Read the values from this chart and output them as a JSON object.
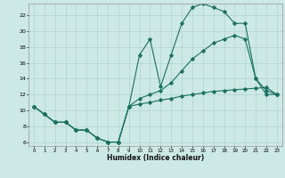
{
  "xlabel": "Humidex (Indice chaleur)",
  "background_color": "#cce9e5",
  "grid_color": "#aed4cf",
  "line_color": "#1a7060",
  "line1_x": [
    0,
    1,
    2,
    3,
    4,
    5,
    6,
    7,
    8,
    9,
    10,
    11,
    12,
    13,
    14,
    15,
    16,
    17,
    18,
    19,
    20,
    21,
    22,
    23
  ],
  "line1_y": [
    10.5,
    9.5,
    8.5,
    8.5,
    7.5,
    7.5,
    6.5,
    6.0,
    6.0,
    10.5,
    17.0,
    19.0,
    13.0,
    17.0,
    21.0,
    23.0,
    23.5,
    23.0,
    22.5,
    21.0,
    21.0,
    14.0,
    12.0,
    12.0
  ],
  "line2_x": [
    0,
    1,
    2,
    3,
    4,
    5,
    6,
    7,
    8,
    9,
    10,
    11,
    12,
    13,
    14,
    15,
    16,
    17,
    18,
    19,
    20,
    21,
    22,
    23
  ],
  "line2_y": [
    10.5,
    9.5,
    8.5,
    8.5,
    7.5,
    7.5,
    6.5,
    6.0,
    6.0,
    10.5,
    11.5,
    12.0,
    12.5,
    13.5,
    15.0,
    16.5,
    17.5,
    18.5,
    19.0,
    19.5,
    19.0,
    14.0,
    12.5,
    12.0
  ],
  "line3_x": [
    0,
    1,
    2,
    3,
    4,
    5,
    6,
    7,
    8,
    9,
    10,
    11,
    12,
    13,
    14,
    15,
    16,
    17,
    18,
    19,
    20,
    21,
    22,
    23
  ],
  "line3_y": [
    10.5,
    9.5,
    8.5,
    8.5,
    7.5,
    7.5,
    6.5,
    6.0,
    6.0,
    10.5,
    10.8,
    11.0,
    11.3,
    11.5,
    11.8,
    12.0,
    12.2,
    12.4,
    12.5,
    12.6,
    12.7,
    12.8,
    12.9,
    12.0
  ],
  "xlim": [
    -0.5,
    23.5
  ],
  "ylim": [
    5.5,
    23.5
  ],
  "xticks": [
    0,
    1,
    2,
    3,
    4,
    5,
    6,
    7,
    8,
    9,
    10,
    11,
    12,
    13,
    14,
    15,
    16,
    17,
    18,
    19,
    20,
    21,
    22,
    23
  ],
  "yticks": [
    6,
    8,
    10,
    12,
    14,
    16,
    18,
    20,
    22
  ]
}
